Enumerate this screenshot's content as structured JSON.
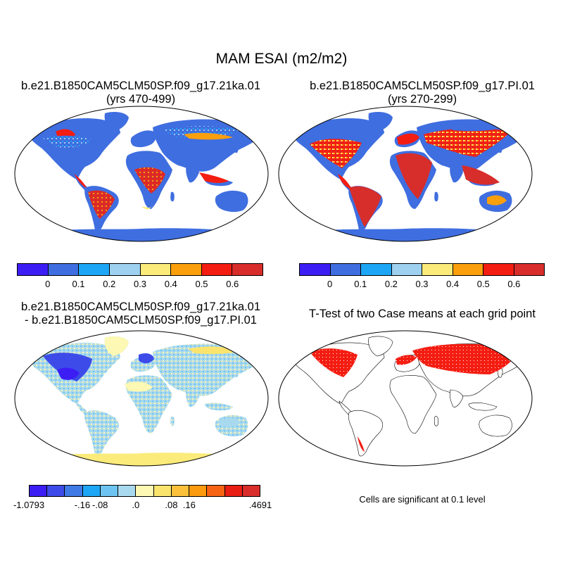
{
  "title": "MAM ESAI (m2/m2)",
  "panels": {
    "top_left": {
      "title_line1": "b.e21.B1850CAM5CLM50SP.f09_g17.21ka.01",
      "title_line2": "(yrs 470-499)"
    },
    "top_right": {
      "title_line1": "b.e21.B1850CAM5CLM50SP.f09_g17.PI.01",
      "title_line2": "(yrs 270-299)"
    },
    "bottom_left": {
      "title_line1": "b.e21.B1850CAM5CLM50SP.f09_g17.21ka.01",
      "title_line2": "- b.e21.B1850CAM5CLM50SP.f09_g17.PI.01"
    },
    "bottom_right": {
      "title_line1": "T-Test of two Case means at each grid point",
      "note": "Cells are significant at 0.1 level"
    }
  },
  "colorbar_abs": {
    "colors": [
      "#3c1ef5",
      "#3f6ee0",
      "#1ea6f6",
      "#9dd1ef",
      "#fbeb7a",
      "#fb9f0c",
      "#f41d12",
      "#d72d2b"
    ],
    "labels": [
      "0",
      "0.1",
      "0.2",
      "0.3",
      "0.4",
      "0.5",
      "0.6"
    ]
  },
  "colorbar_diff": {
    "colors": [
      "#3c1ef5",
      "#3d4ce9",
      "#3f7ae5",
      "#1ea6f6",
      "#6ec4f1",
      "#a9d9ef",
      "#fdf8b3",
      "#fbe46e",
      "#fcc03a",
      "#fb9a0d",
      "#f66313",
      "#e81d13",
      "#d72d2b"
    ],
    "labels": [
      "-1.0793",
      "-.16",
      "-.08",
      ".0",
      ".08",
      ".16",
      ".4691"
    ]
  },
  "colors": {
    "ocean": "#ffffff",
    "antarctica_abs": "#3f6ee0",
    "antarctica_diff": "#fbeb7a",
    "significant": "#f41d12",
    "coast": "#000000"
  }
}
